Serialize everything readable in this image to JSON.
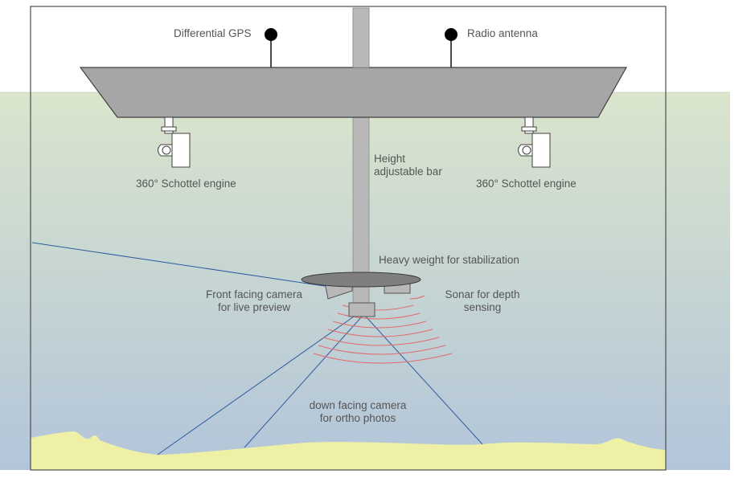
{
  "diagram": {
    "labels": {
      "differential_gps": "Differential GPS",
      "radio_antenna": "Radio antenna",
      "engine_left": "360° Schottel engine",
      "engine_right": "360° Schottel engine",
      "height_bar_line1": "Height",
      "height_bar_line2": "adjustable bar",
      "heavy_weight": "Heavy weight for stabilization",
      "front_camera_line1": "Front facing camera",
      "front_camera_line2": "for live preview",
      "sonar_line1": "Sonar for depth",
      "sonar_line2": "sensing",
      "down_camera_line1": "down facing camera",
      "down_camera_line2": "for ortho photos"
    },
    "colors": {
      "water_top": "#d9e4cc",
      "water_bottom": "#b3c6da",
      "hull": "#a6a6a6",
      "outline": "#404040",
      "ground": "#eef0a6",
      "sonar_waves": "#e36a6a",
      "view_lines": "#2f5c9e",
      "weight": "#7f7f7f"
    }
  }
}
